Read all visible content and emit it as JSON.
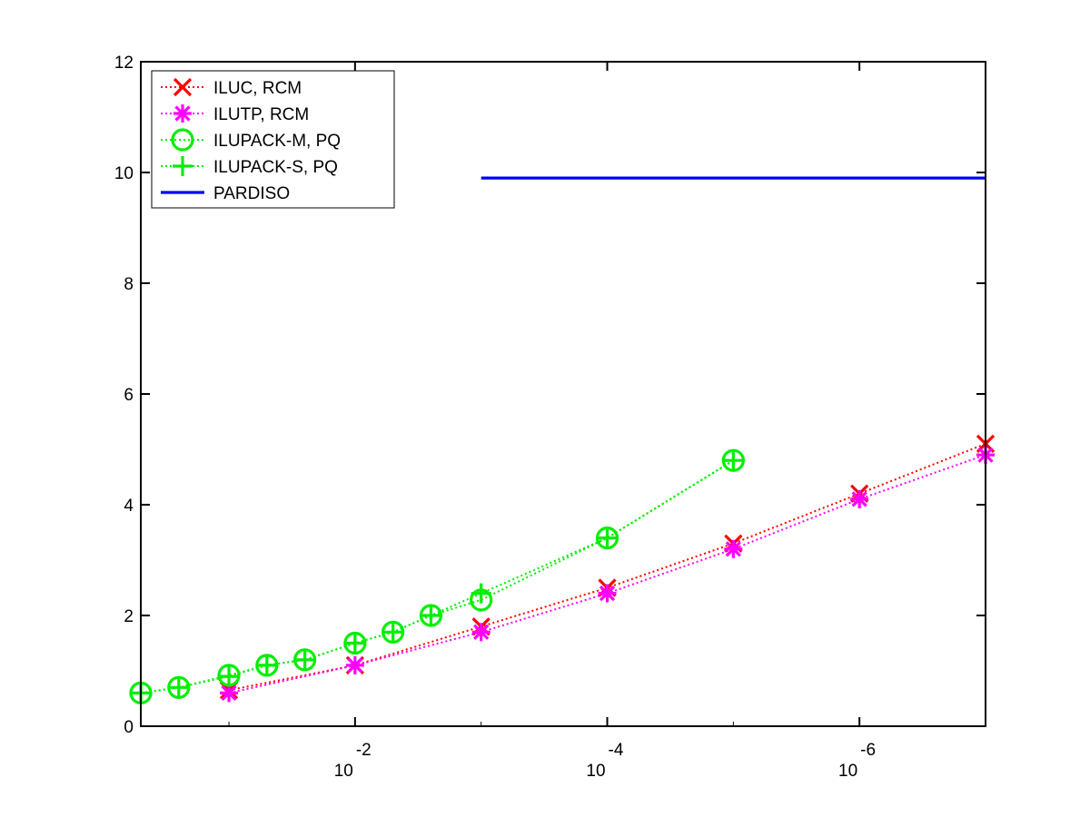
{
  "chart_data": {
    "type": "line",
    "title": "",
    "xlabel": "",
    "ylabel": "",
    "x_scale": "log",
    "x_reversed": true,
    "xlim": [
      0.5,
      1e-07
    ],
    "ylim": [
      0,
      12
    ],
    "y_ticks": [
      0,
      2,
      4,
      6,
      8,
      10,
      12
    ],
    "y_tick_labels": [
      "0",
      "2",
      "4",
      "6",
      "8",
      "10",
      "12"
    ],
    "x_ticks": [
      {
        "value": 0.01,
        "base": "10",
        "exp": "-2"
      },
      {
        "value": 0.0001,
        "base": "10",
        "exp": "-4"
      },
      {
        "value": 1e-06,
        "base": "10",
        "exp": "-6"
      }
    ],
    "grid": false,
    "legend_position": "top-left",
    "series": [
      {
        "name": "ILUC, RCM",
        "color": "#ff0000",
        "marker": "x",
        "line": "dotted",
        "x": [
          0.1,
          0.01,
          0.001,
          0.0001,
          1e-05,
          1e-06,
          1e-07
        ],
        "y": [
          0.65,
          1.1,
          1.8,
          2.5,
          3.3,
          4.2,
          5.1
        ]
      },
      {
        "name": "ILUTP, RCM",
        "color": "#ff00ff",
        "marker": "asterisk",
        "line": "dotted",
        "x": [
          0.1,
          0.01,
          0.001,
          0.0001,
          1e-05,
          1e-06,
          1e-07
        ],
        "y": [
          0.6,
          1.1,
          1.7,
          2.4,
          3.2,
          4.1,
          4.9
        ]
      },
      {
        "name": "ILUPACK-M, PQ",
        "color": "#00ee00",
        "marker": "circle",
        "line": "dotted",
        "x": [
          0.5,
          0.25,
          0.1,
          0.05,
          0.025,
          0.01,
          0.005,
          0.0025,
          0.001,
          0.0001,
          1e-05
        ],
        "y": [
          0.6,
          0.7,
          0.92,
          1.1,
          1.2,
          1.5,
          1.7,
          2.0,
          2.28,
          3.4,
          4.8
        ]
      },
      {
        "name": "ILUPACK-S, PQ",
        "color": "#00ee00",
        "marker": "plus",
        "line": "dotted",
        "x": [
          0.5,
          0.25,
          0.1,
          0.05,
          0.025,
          0.01,
          0.005,
          0.0025,
          0.001,
          0.0001,
          1e-05
        ],
        "y": [
          0.6,
          0.7,
          0.9,
          1.1,
          1.2,
          1.5,
          1.7,
          2.0,
          2.4,
          3.4,
          4.8
        ]
      },
      {
        "name": "PARDISO",
        "color": "#0000ff",
        "marker": "none",
        "line": "solid",
        "x": [
          0.001,
          1e-07
        ],
        "y": [
          9.9,
          9.9
        ]
      }
    ]
  }
}
